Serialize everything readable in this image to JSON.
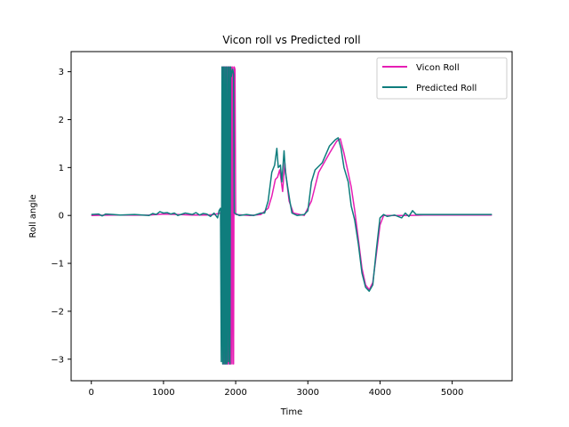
{
  "chart_data": {
    "type": "line",
    "title": "Vicon roll vs Predicted roll",
    "xlabel": "Time",
    "ylabel": "Roll angle",
    "xlim": [
      -280,
      5830
    ],
    "ylim": [
      -3.45,
      3.42
    ],
    "xticks": [
      0,
      1000,
      2000,
      3000,
      4000,
      5000
    ],
    "yticks": [
      -3,
      -2,
      -1,
      0,
      1,
      2,
      3
    ],
    "legend_position": "top-right",
    "grid": false,
    "series": [
      {
        "name": "Vicon Roll",
        "color": "#e61eb4",
        "points": [
          [
            0,
            0
          ],
          [
            200,
            0.005
          ],
          [
            400,
            0.01
          ],
          [
            600,
            0.005
          ],
          [
            800,
            0.01
          ],
          [
            1000,
            0.03
          ],
          [
            1200,
            0.02
          ],
          [
            1400,
            0.01
          ],
          [
            1600,
            0.01
          ],
          [
            1700,
            0.02
          ],
          [
            1790,
            0.05
          ],
          [
            1810,
            -0.05
          ],
          [
            1820,
            3.1
          ],
          [
            1830,
            -3.1
          ],
          [
            1840,
            3.1
          ],
          [
            1850,
            -3.1
          ],
          [
            1860,
            3.1
          ],
          [
            1870,
            -3.1
          ],
          [
            1880,
            3.1
          ],
          [
            1890,
            -3.1
          ],
          [
            1900,
            3.1
          ],
          [
            1910,
            -3.1
          ],
          [
            1920,
            3.1
          ],
          [
            1930,
            -3.1
          ],
          [
            1940,
            3.1
          ],
          [
            1950,
            -3.1
          ],
          [
            1960,
            3.1
          ],
          [
            1970,
            -3.1
          ],
          [
            1980,
            3.1
          ],
          [
            1990,
            3.05
          ],
          [
            2000,
            0.02
          ],
          [
            2200,
            0.0
          ],
          [
            2350,
            0.02
          ],
          [
            2450,
            0.15
          ],
          [
            2500,
            0.4
          ],
          [
            2550,
            0.75
          ],
          [
            2580,
            0.8
          ],
          [
            2610,
            0.95
          ],
          [
            2650,
            0.5
          ],
          [
            2680,
            1.1
          ],
          [
            2700,
            0.8
          ],
          [
            2740,
            0.3
          ],
          [
            2800,
            0.05
          ],
          [
            2950,
            0.0
          ],
          [
            3050,
            0.3
          ],
          [
            3150,
            0.9
          ],
          [
            3300,
            1.3
          ],
          [
            3400,
            1.55
          ],
          [
            3450,
            1.6
          ],
          [
            3500,
            1.3
          ],
          [
            3600,
            0.6
          ],
          [
            3650,
            0.1
          ],
          [
            3700,
            -0.5
          ],
          [
            3750,
            -1.1
          ],
          [
            3800,
            -1.45
          ],
          [
            3850,
            -1.55
          ],
          [
            3900,
            -1.4
          ],
          [
            3950,
            -0.8
          ],
          [
            4000,
            -0.2
          ],
          [
            4050,
            0.0
          ],
          [
            4200,
            0.0
          ],
          [
            4400,
            0.0
          ],
          [
            4600,
            0.01
          ],
          [
            5000,
            0.01
          ],
          [
            5400,
            0.01
          ],
          [
            5550,
            0.01
          ]
        ]
      },
      {
        "name": "Predicted Roll",
        "color": "#0f7d7d",
        "points": [
          [
            0,
            0.02
          ],
          [
            100,
            0.03
          ],
          [
            150,
            -0.01
          ],
          [
            200,
            0.03
          ],
          [
            300,
            0.02
          ],
          [
            400,
            0.01
          ],
          [
            600,
            0.02
          ],
          [
            800,
            0.0
          ],
          [
            850,
            0.04
          ],
          [
            900,
            0.02
          ],
          [
            950,
            0.08
          ],
          [
            1000,
            0.05
          ],
          [
            1050,
            0.06
          ],
          [
            1100,
            0.03
          ],
          [
            1150,
            0.05
          ],
          [
            1200,
            0.0
          ],
          [
            1300,
            0.05
          ],
          [
            1400,
            0.02
          ],
          [
            1450,
            0.06
          ],
          [
            1500,
            0.01
          ],
          [
            1550,
            0.04
          ],
          [
            1600,
            0.03
          ],
          [
            1650,
            -0.02
          ],
          [
            1700,
            0.05
          ],
          [
            1750,
            -0.05
          ],
          [
            1770,
            0.1
          ],
          [
            1790,
            0.15
          ],
          [
            1800,
            -3.05
          ],
          [
            1810,
            3.1
          ],
          [
            1820,
            -3.1
          ],
          [
            1830,
            3.1
          ],
          [
            1840,
            -3.1
          ],
          [
            1850,
            3.1
          ],
          [
            1860,
            -3.1
          ],
          [
            1870,
            3.1
          ],
          [
            1880,
            -3.1
          ],
          [
            1890,
            3.1
          ],
          [
            1900,
            -3.05
          ],
          [
            1910,
            3.1
          ],
          [
            1920,
            -3.1
          ],
          [
            1930,
            3.1
          ],
          [
            1940,
            2.9
          ],
          [
            1950,
            3.0
          ],
          [
            1960,
            3.05
          ],
          [
            1970,
            2.95
          ],
          [
            1980,
            0.05
          ],
          [
            2050,
            0.0
          ],
          [
            2150,
            0.02
          ],
          [
            2250,
            0.0
          ],
          [
            2350,
            0.05
          ],
          [
            2400,
            0.05
          ],
          [
            2450,
            0.3
          ],
          [
            2500,
            0.9
          ],
          [
            2540,
            1.05
          ],
          [
            2570,
            1.4
          ],
          [
            2590,
            1.0
          ],
          [
            2620,
            1.05
          ],
          [
            2640,
            0.7
          ],
          [
            2670,
            1.35
          ],
          [
            2690,
            0.9
          ],
          [
            2720,
            0.6
          ],
          [
            2750,
            0.3
          ],
          [
            2780,
            0.05
          ],
          [
            2850,
            0.0
          ],
          [
            2950,
            0.02
          ],
          [
            3000,
            0.1
          ],
          [
            3050,
            0.7
          ],
          [
            3100,
            0.95
          ],
          [
            3200,
            1.1
          ],
          [
            3300,
            1.45
          ],
          [
            3380,
            1.58
          ],
          [
            3420,
            1.62
          ],
          [
            3460,
            1.4
          ],
          [
            3500,
            1.0
          ],
          [
            3560,
            0.7
          ],
          [
            3600,
            0.2
          ],
          [
            3650,
            -0.1
          ],
          [
            3700,
            -0.6
          ],
          [
            3750,
            -1.2
          ],
          [
            3800,
            -1.5
          ],
          [
            3850,
            -1.58
          ],
          [
            3900,
            -1.45
          ],
          [
            3950,
            -0.7
          ],
          [
            4000,
            -0.05
          ],
          [
            4050,
            0.02
          ],
          [
            4100,
            -0.02
          ],
          [
            4200,
            0.01
          ],
          [
            4300,
            -0.05
          ],
          [
            4350,
            0.05
          ],
          [
            4400,
            -0.02
          ],
          [
            4450,
            0.1
          ],
          [
            4500,
            0.02
          ],
          [
            4700,
            0.02
          ],
          [
            5000,
            0.02
          ],
          [
            5300,
            0.02
          ],
          [
            5550,
            0.02
          ]
        ]
      }
    ]
  }
}
